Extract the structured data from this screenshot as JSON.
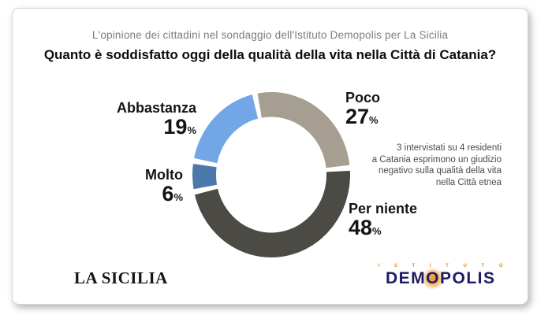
{
  "header": {
    "subtitle": "L'opinione dei cittadini nel sondaggio dell'Istituto Demopolis per La Sicilia",
    "title": "Quanto è soddisfatto oggi della qualità della vita nella Città di Catania?"
  },
  "chart_data": {
    "type": "pie",
    "subtype": "donut",
    "title": "Quanto è soddisfatto oggi della qualità della vita nella Città di Catania?",
    "unit": "%",
    "start_angle_deg": -12,
    "gap_deg": 4,
    "legend_position": "labels-around-donut",
    "segments": [
      {
        "label": "Poco",
        "value": 27,
        "color": "#a79e92"
      },
      {
        "label": "Per niente",
        "value": 48,
        "color": "#4c4a45"
      },
      {
        "label": "Molto",
        "value": 6,
        "color": "#4c79ab"
      },
      {
        "label": "Abbastanza",
        "value": 19,
        "color": "#73a6e6"
      }
    ],
    "annotation": "3 intervistati su 4 residenti a Catania esprimono un giudizio negativo sulla qualità della vita nella Città etnea"
  },
  "note": {
    "lines": [
      "3 intervistati su 4 residenti",
      "a Catania esprimono un giudizio",
      "negativo sulla qualità della vita",
      "nella Città etnea"
    ]
  },
  "footer": {
    "la_sicilia": "LA SICILIA",
    "istituto": "I S T I T U T O",
    "demopolis_prefix": "DEM",
    "demopolis_o": "O",
    "demopolis_suffix": "POLIS"
  }
}
